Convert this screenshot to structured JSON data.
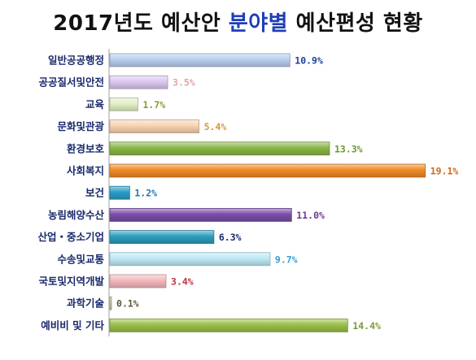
{
  "title": {
    "prefix": "2017년도 예산안 ",
    "highlight": "분야별",
    "suffix": " 예산편성 현황"
  },
  "chart_data": {
    "type": "bar",
    "orientation": "horizontal",
    "title": "2017년도 예산안 분야별 예산편성 현황",
    "xlabel": "",
    "ylabel": "",
    "xlim": [
      0,
      22
    ],
    "grid": false,
    "legend": "none",
    "categories": [
      "일반공공행정",
      "공공질서및안전",
      "교육",
      "문화및관광",
      "환경보호",
      "사회복지",
      "보건",
      "농림해양수산",
      "산업・중소기업",
      "수송및교통",
      "국토및지역개발",
      "과학기술",
      "예비비 및 기타"
    ],
    "values": [
      10.9,
      3.5,
      1.7,
      5.4,
      13.3,
      19.1,
      1.2,
      11.0,
      6.3,
      9.7,
      3.4,
      0.1,
      14.4
    ],
    "value_labels": [
      "10.9%",
      "3.5%",
      "1.7%",
      "5.4%",
      "13.3%",
      "19.1%",
      "1.2%",
      "11.0%",
      "6.3%",
      "9.7%",
      "3.4%",
      "0.1%",
      "14.4%"
    ],
    "bar_colors": [
      "#b8cdee",
      "#dcc8ef",
      "#e2f0c4",
      "#f8d2b0",
      "#8ab646",
      "#ef8a24",
      "#2a9cc8",
      "#7a4ea8",
      "#2d9cbc",
      "#bde9f6",
      "#f4b8bc",
      "#c9c9a6",
      "#9ac049"
    ],
    "label_colors": [
      "#1d3f9e",
      "#e8a0a6",
      "#8a9a2a",
      "#d99a3a",
      "#6a9a2a",
      "#d0681a",
      "#1a7ab0",
      "#6a3a98",
      "#1a2a6c",
      "#3aa0d0",
      "#c03040",
      "#5a5a3a",
      "#7a9a3a"
    ]
  }
}
